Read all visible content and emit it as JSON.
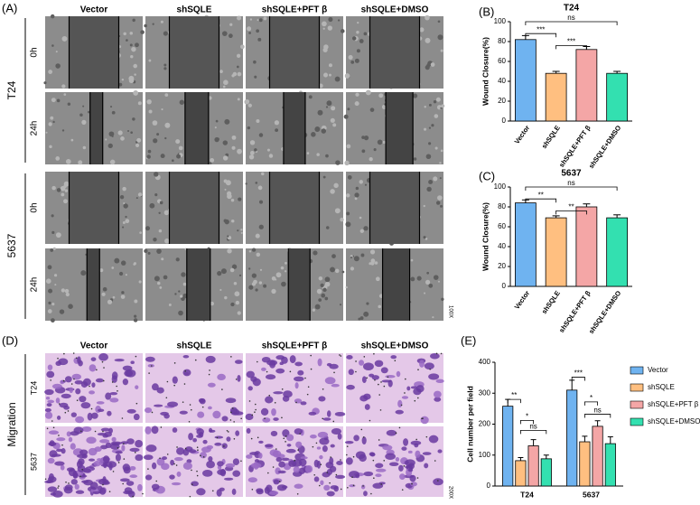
{
  "panels": [
    "(A)",
    "(B)",
    "(C)",
    "(D)",
    "(E)"
  ],
  "scratch": {
    "columns": [
      "Vector",
      "shSQLE",
      "shSQLE+PFT β",
      "shSQLE+DMSO"
    ],
    "cell_lines": [
      "T24",
      "5637"
    ],
    "times": [
      "0h",
      "24h"
    ],
    "magnification": "100X"
  },
  "transwell": {
    "columns": [
      "Vector",
      "shSQLE",
      "shSQLE+PFT β",
      "shSQLE+DMSO"
    ],
    "row_label": "Migration",
    "cell_lines": [
      "T24",
      "5637"
    ],
    "magnification": "200X"
  },
  "chart_data": [
    {
      "type": "bar",
      "title": "T24",
      "y_label": "Wound Closure(%)",
      "categories": [
        "Vector",
        "shSQLE",
        "shSQLE+PFT β",
        "shSQLE+DMSO"
      ],
      "values": [
        82,
        48,
        72,
        48
      ],
      "errors": [
        4,
        2,
        3,
        2
      ],
      "colors": [
        "#6fb3f0",
        "#ffbf80",
        "#f4a6a6",
        "#33e0b0"
      ],
      "ylim": [
        0,
        100
      ],
      "yticks": [
        0,
        20,
        40,
        60,
        80,
        100
      ],
      "annotations": [
        "***",
        "***",
        "ns"
      ]
    },
    {
      "type": "bar",
      "title": "5637",
      "y_label": "Wound Closure(%)",
      "categories": [
        "Vector",
        "shSQLE",
        "shSQLE+PFT β",
        "shSQLE+DMSO"
      ],
      "values": [
        84,
        69,
        80,
        69
      ],
      "errors": [
        3,
        2,
        3,
        3
      ],
      "colors": [
        "#6fb3f0",
        "#ffbf80",
        "#f4a6a6",
        "#33e0b0"
      ],
      "ylim": [
        0,
        100
      ],
      "yticks": [
        0,
        20,
        40,
        60,
        80,
        100
      ],
      "annotations": [
        "**",
        "**",
        "ns"
      ]
    },
    {
      "type": "grouped_bar",
      "y_label": "Cell number per field",
      "categories": [
        "T24",
        "5637"
      ],
      "series": [
        {
          "name": "Vector",
          "color": "#6fb3f0",
          "values": [
            258,
            310
          ],
          "errors": [
            22,
            32
          ]
        },
        {
          "name": "shSQLE",
          "color": "#ffbf80",
          "values": [
            82,
            143
          ],
          "errors": [
            10,
            18
          ]
        },
        {
          "name": "shSQLE+PFT β",
          "color": "#f4a6a6",
          "values": [
            130,
            193
          ],
          "errors": [
            20,
            18
          ]
        },
        {
          "name": "shSQLE+DMSO",
          "color": "#33e0b0",
          "values": [
            88,
            137
          ],
          "errors": [
            12,
            22
          ]
        }
      ],
      "ylim": [
        0,
        400
      ],
      "yticks": [
        0,
        100,
        200,
        300,
        400
      ],
      "annotations": [
        [
          "**",
          "*",
          "ns"
        ],
        [
          "***",
          "*",
          "ns"
        ]
      ]
    }
  ]
}
